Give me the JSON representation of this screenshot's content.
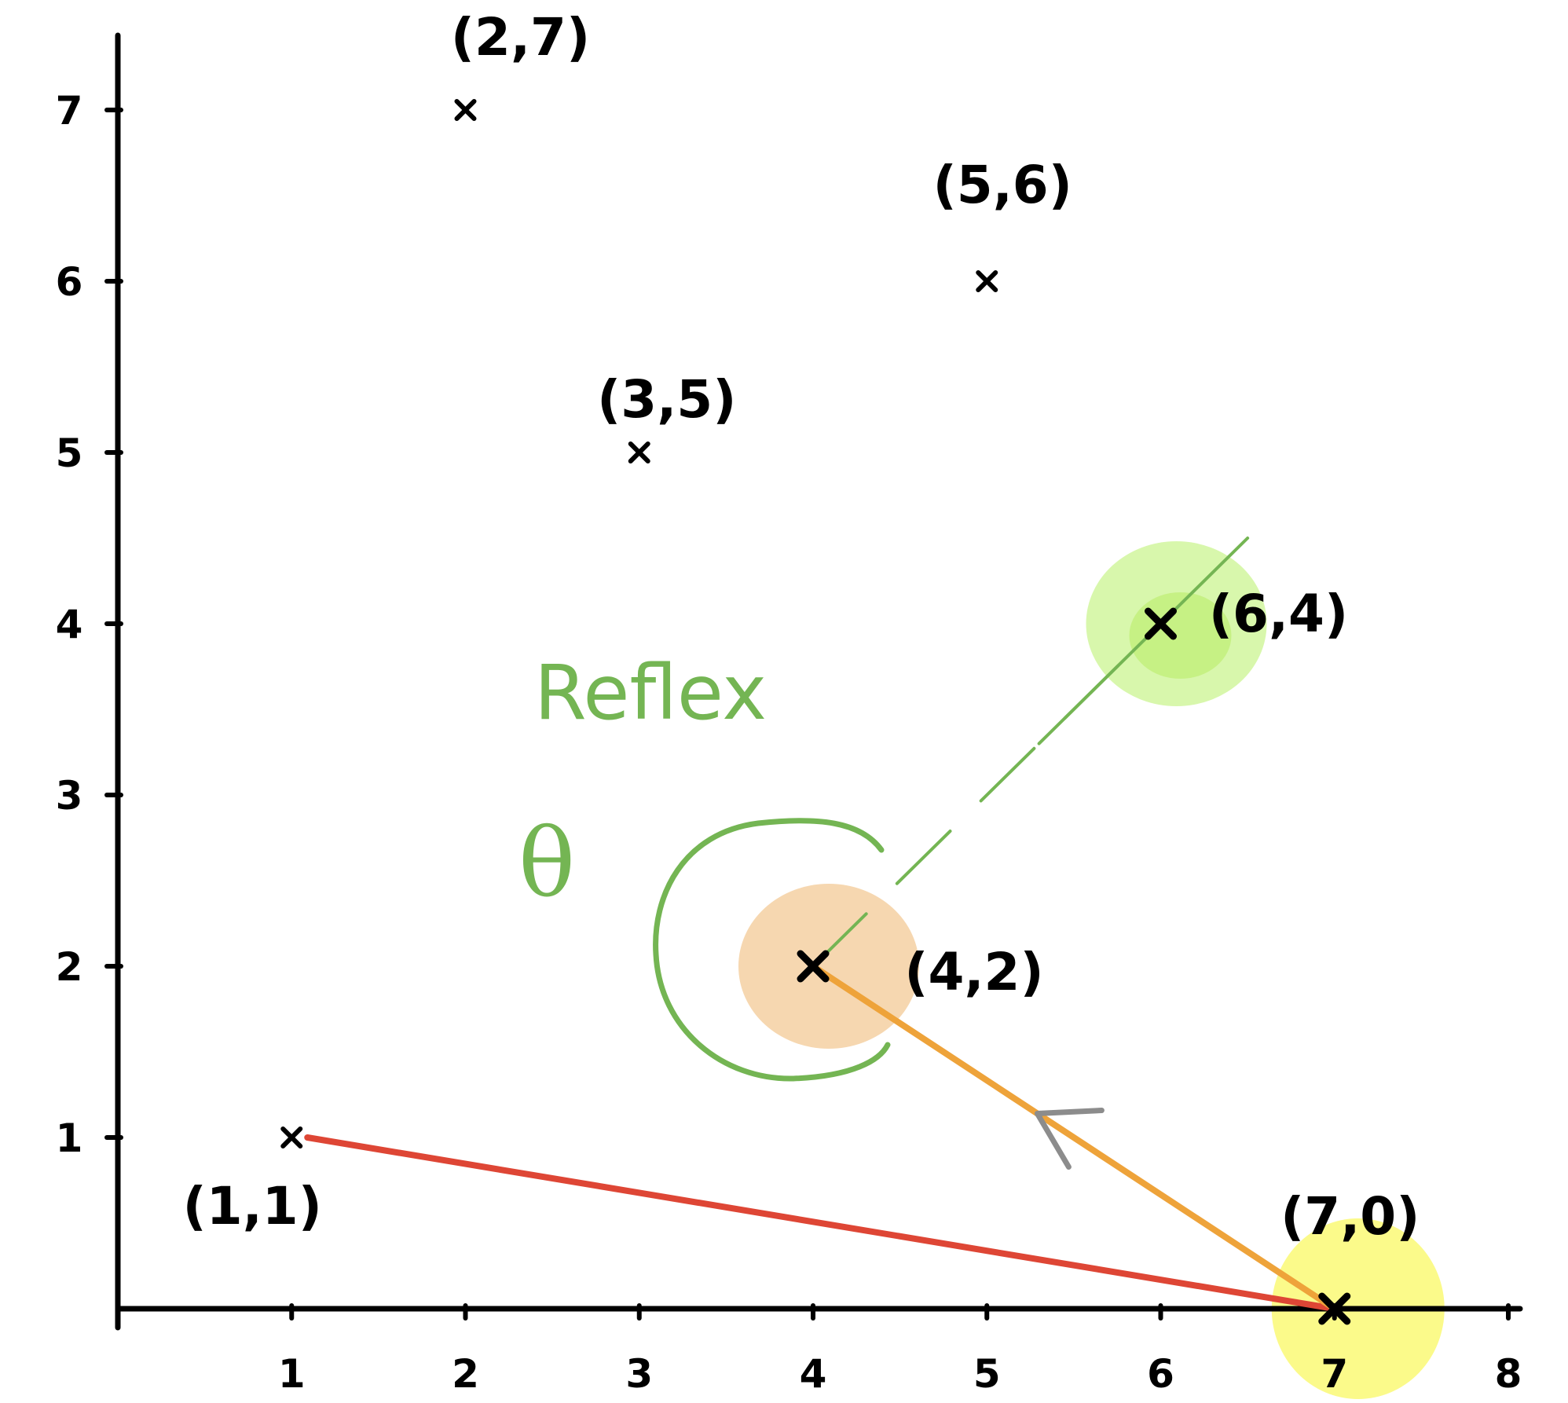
{
  "colors": {
    "axis": "#000000",
    "red_segment": "#de4635",
    "orange_segment": "#eea33a",
    "green": "#74b553",
    "arrow_gray": "#8c8c8c",
    "highlight_green": "#d6f7a8",
    "highlight_orange": "#f6d5ac",
    "highlight_yellow": "#fbfa84"
  },
  "chart_data": {
    "type": "scatter",
    "xlim": [
      0,
      8
    ],
    "ylim": [
      0,
      7
    ],
    "x_ticks": [
      "1",
      "2",
      "3",
      "4",
      "5",
      "6",
      "7",
      "8"
    ],
    "y_ticks": [
      "1",
      "2",
      "3",
      "4",
      "5",
      "6",
      "7"
    ],
    "points": [
      {
        "x": 2,
        "y": 7,
        "label": "(2,7)"
      },
      {
        "x": 5,
        "y": 6,
        "label": "(5,6)"
      },
      {
        "x": 3,
        "y": 5,
        "label": "(3,5)"
      },
      {
        "x": 6,
        "y": 4,
        "label": "(6,4)",
        "highlight": "green"
      },
      {
        "x": 4,
        "y": 2,
        "label": "(4,2)",
        "highlight": "orange"
      },
      {
        "x": 1,
        "y": 1,
        "label": "(1,1)"
      },
      {
        "x": 7,
        "y": 0,
        "label": "(7,0)",
        "highlight": "yellow"
      }
    ],
    "segments": [
      {
        "from": [
          1,
          1
        ],
        "to": [
          7,
          0
        ],
        "color": "red"
      },
      {
        "from": [
          7,
          0
        ],
        "to": [
          4,
          2
        ],
        "color": "orange",
        "arrow_toward": [
          4,
          2
        ]
      },
      {
        "from": [
          4,
          2
        ],
        "to": [
          6,
          4
        ],
        "color": "green",
        "style": "dashed"
      }
    ],
    "annotations": {
      "reflex_text": "Reflex",
      "theta_symbol": "θ"
    }
  }
}
